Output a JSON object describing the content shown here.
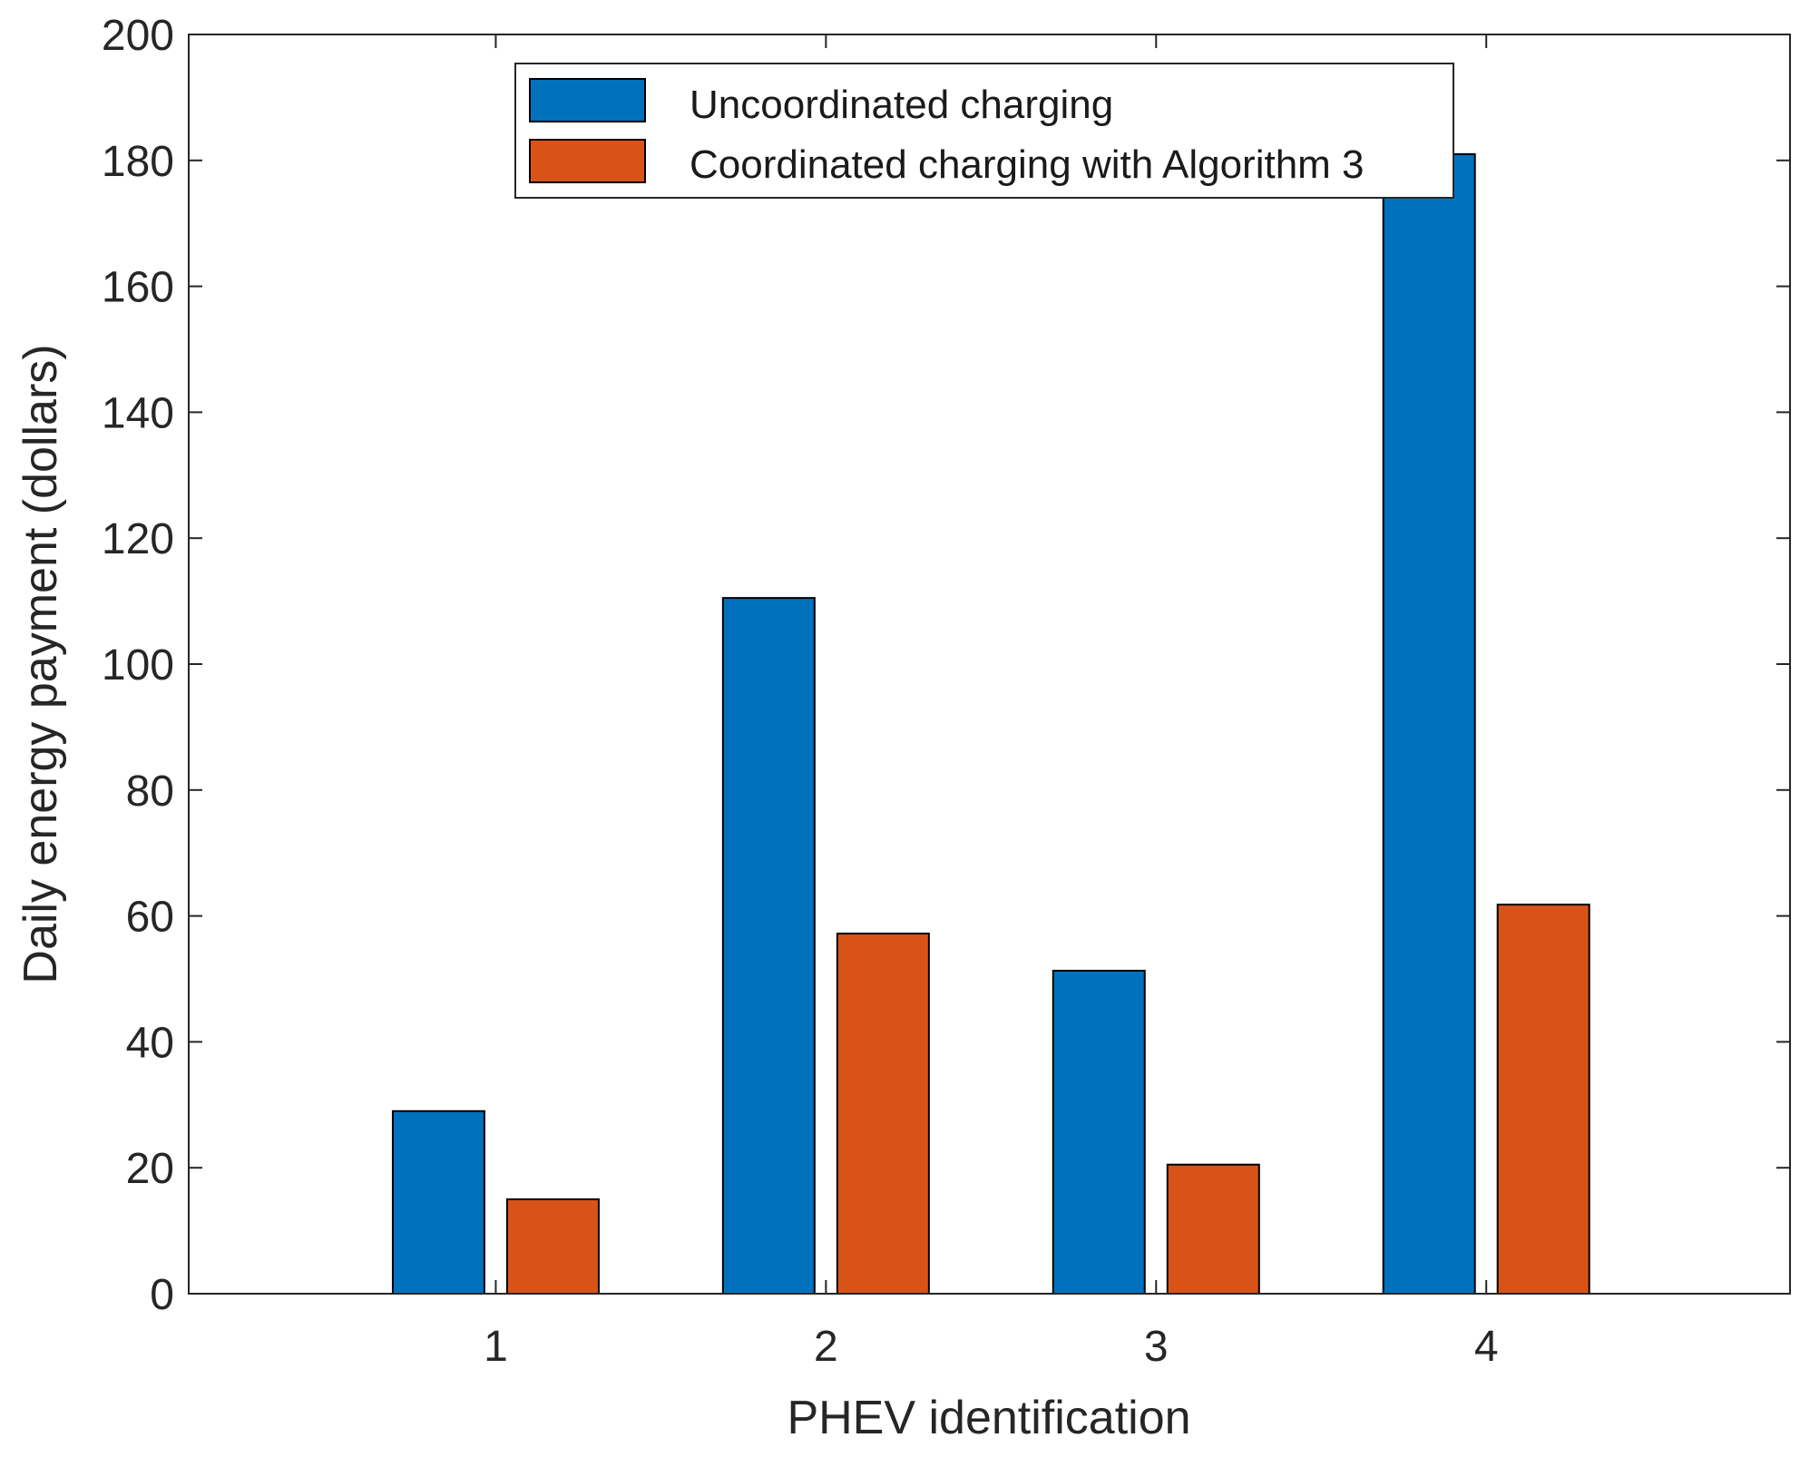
{
  "chart_data": {
    "type": "bar",
    "title": "",
    "xlabel": "PHEV identification",
    "ylabel": "Daily energy payment (dollars)",
    "categories": [
      "1",
      "2",
      "3",
      "4"
    ],
    "series": [
      {
        "name": "Uncoordinated charging",
        "color": "#0072bd",
        "values": [
          29,
          110.5,
          51.3,
          181
        ]
      },
      {
        "name": "Coordinated charging with Algorithm 3",
        "color": "#d95319",
        "values": [
          15,
          57.2,
          20.5,
          61.8
        ]
      }
    ],
    "ylim": [
      0,
      200
    ],
    "yticks": [
      "0",
      "20",
      "40",
      "60",
      "80",
      "100",
      "120",
      "140",
      "160",
      "180",
      "200"
    ],
    "grid": false,
    "legend_position": "top-center"
  }
}
